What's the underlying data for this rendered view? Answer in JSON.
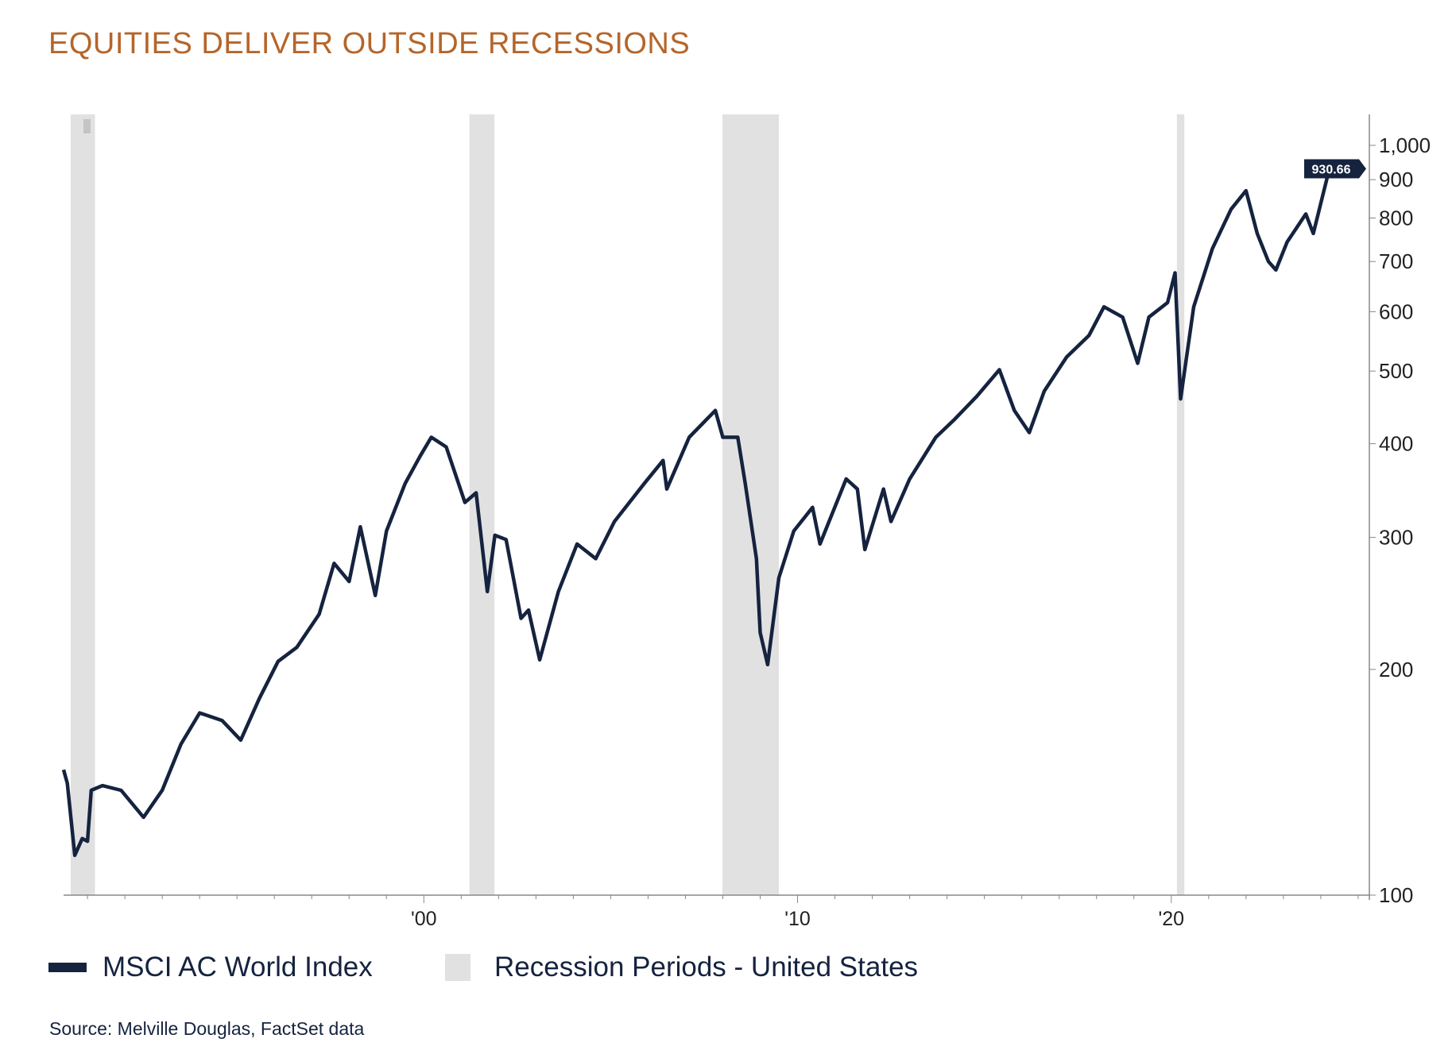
{
  "title": "EQUITIES DELIVER OUTSIDE RECESSIONS",
  "source": "Source: Melville Douglas, FactSet data",
  "colors": {
    "title": "#b5652a",
    "series": "#15233f",
    "recession": "#e1e1e1",
    "axis": "#888888"
  },
  "chart_data": {
    "type": "line",
    "title": "EQUITIES DELIVER OUTSIDE RECESSIONS",
    "y_scale": "log",
    "ylim": [
      100,
      1150
    ],
    "xlim": [
      1990.36,
      2025.3
    ],
    "y_ticks": [
      {
        "value": 100,
        "label": "100"
      },
      {
        "value": 200,
        "label": "200"
      },
      {
        "value": 300,
        "label": "300"
      },
      {
        "value": 400,
        "label": "400"
      },
      {
        "value": 500,
        "label": "500"
      },
      {
        "value": 600,
        "label": "600"
      },
      {
        "value": 700,
        "label": "700"
      },
      {
        "value": 800,
        "label": "800"
      },
      {
        "value": 900,
        "label": "900"
      },
      {
        "value": 1000,
        "label": "1,000"
      }
    ],
    "x_ticks": [
      {
        "value": 2000,
        "label": "'00"
      },
      {
        "value": 2010,
        "label": "'10"
      },
      {
        "value": 2020,
        "label": "'20"
      }
    ],
    "y_axis_side": "right",
    "grid": false,
    "legend_placement": "bottom",
    "last_value_label": "930.66",
    "series": [
      {
        "name": "MSCI AC World Index",
        "x": [
          1990.36,
          1990.46,
          1990.66,
          1990.86,
          1991.0,
          1991.1,
          1991.4,
          1991.9,
          1992.5,
          1993.0,
          1993.5,
          1994.0,
          1994.6,
          1995.1,
          1995.6,
          1996.1,
          1996.6,
          1997.2,
          1997.6,
          1998.0,
          1998.3,
          1998.7,
          1999.0,
          1999.5,
          1999.9,
          2000.2,
          2000.6,
          2001.1,
          2001.4,
          2001.7,
          2001.9,
          2002.2,
          2002.6,
          2002.8,
          2003.1,
          2003.6,
          2004.1,
          2004.6,
          2005.1,
          2005.9,
          2006.4,
          2006.5,
          2007.1,
          2007.8,
          2008.0,
          2008.4,
          2008.6,
          2008.9,
          2009.0,
          2009.2,
          2009.5,
          2009.9,
          2010.4,
          2010.6,
          2011.3,
          2011.6,
          2011.8,
          2012.3,
          2012.5,
          2013.0,
          2013.7,
          2014.2,
          2014.8,
          2015.4,
          2015.8,
          2016.2,
          2016.6,
          2017.2,
          2017.8,
          2018.2,
          2018.7,
          2019.1,
          2019.4,
          2019.9,
          2020.1,
          2020.25,
          2020.6,
          2021.1,
          2021.6,
          2022.0,
          2022.3,
          2022.6,
          2022.8,
          2023.1,
          2023.6,
          2023.8,
          2024.23
        ],
        "values": [
          147,
          141,
          113,
          119,
          118,
          138,
          140,
          138,
          127,
          138,
          159,
          175,
          171,
          161,
          183,
          205,
          214,
          237,
          277,
          262,
          310,
          251,
          306,
          354,
          385,
          408,
          396,
          334,
          344,
          254,
          302,
          298,
          234,
          240,
          206,
          254,
          294,
          281,
          315,
          354,
          380,
          348,
          408,
          443,
          408,
          408,
          354,
          281,
          224,
          203,
          265,
          306,
          329,
          294,
          359,
          348,
          289,
          348,
          315,
          359,
          408,
          431,
          463,
          502,
          443,
          414,
          470,
          522,
          558,
          609,
          590,
          512,
          590,
          617,
          676,
          459,
          609,
          728,
          822,
          870,
          763,
          700,
          682,
          743,
          810,
          763,
          930.66
        ]
      }
    ],
    "recessions": [
      {
        "start": 1990.55,
        "end": 1991.2
      },
      {
        "start": 2001.22,
        "end": 2001.89
      },
      {
        "start": 2007.99,
        "end": 2009.5
      },
      {
        "start": 2020.15,
        "end": 2020.35
      }
    ]
  },
  "legend": {
    "series_label": "MSCI AC World Index",
    "recession_label": "Recession Periods - United States"
  }
}
